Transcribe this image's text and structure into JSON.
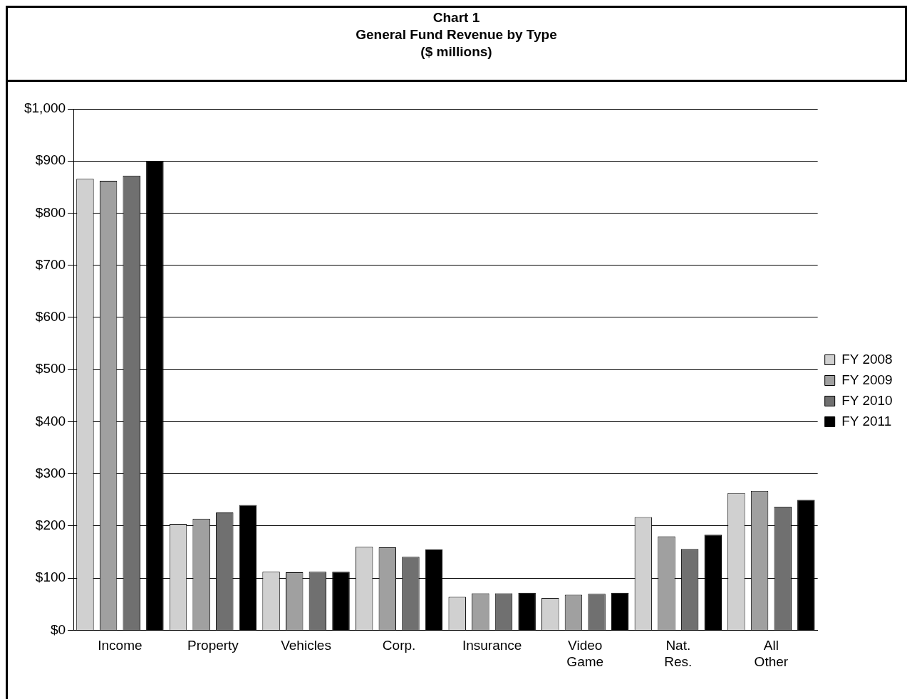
{
  "chart_data": {
    "type": "bar",
    "title": "Chart 1\nGeneral Fund Revenue by Type\n($ millions)",
    "categories": [
      "Income",
      "Property",
      "Vehicles",
      "Corp.",
      "Insurance",
      "Video Game",
      "Nat. Res.",
      "All Other"
    ],
    "series": [
      {
        "name": "FY 2008",
        "color": "#d0d0d0",
        "values": [
          866,
          204,
          112,
          160,
          64,
          62,
          217,
          263
        ]
      },
      {
        "name": "FY 2009",
        "color": "#a0a0a0",
        "values": [
          862,
          214,
          111,
          159,
          71,
          68,
          180,
          267
        ]
      },
      {
        "name": "FY 2010",
        "color": "#707070",
        "values": [
          872,
          226,
          112,
          141,
          71,
          70,
          156,
          237
        ]
      },
      {
        "name": "FY 2011",
        "color": "#000000",
        "values": [
          899,
          240,
          112,
          155,
          72,
          72,
          183,
          250
        ]
      }
    ],
    "ylim": [
      0,
      1000
    ],
    "yticks": [
      {
        "value": 0,
        "label": "$0"
      },
      {
        "value": 100,
        "label": "$100"
      },
      {
        "value": 200,
        "label": "$200"
      },
      {
        "value": 300,
        "label": "$300"
      },
      {
        "value": 400,
        "label": "$400"
      },
      {
        "value": 500,
        "label": "$500"
      },
      {
        "value": 600,
        "label": "$600"
      },
      {
        "value": 700,
        "label": "$700"
      },
      {
        "value": 800,
        "label": "$800"
      },
      {
        "value": 900,
        "label": "$900"
      },
      {
        "value": 1000,
        "label": "$1,000"
      }
    ],
    "grid": "y",
    "legend": "right"
  }
}
